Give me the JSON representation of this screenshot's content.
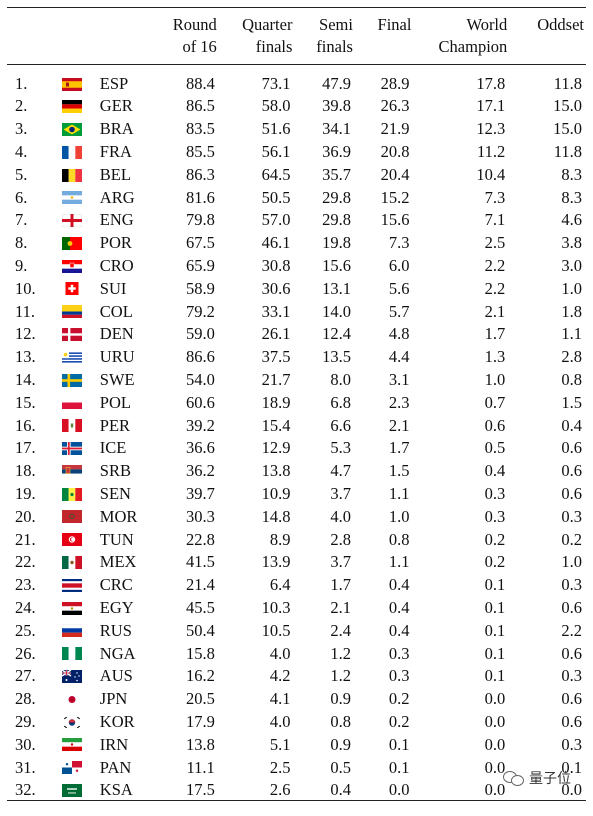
{
  "headers": {
    "r16": [
      "Round",
      "of 16"
    ],
    "qf": [
      "Quarter",
      "finals"
    ],
    "sf": [
      "Semi",
      "finals"
    ],
    "fin": [
      "Final"
    ],
    "wc": [
      "World",
      "Champion"
    ],
    "odd": [
      "Oddset"
    ]
  },
  "rows": [
    {
      "rank": "1.",
      "code": "ESP",
      "r16": "88.4",
      "qf": "73.1",
      "sf": "47.9",
      "fin": "28.9",
      "wc": "17.8",
      "odd": "11.8",
      "flag": "esp-flag-icon"
    },
    {
      "rank": "2.",
      "code": "GER",
      "r16": "86.5",
      "qf": "58.0",
      "sf": "39.8",
      "fin": "26.3",
      "wc": "17.1",
      "odd": "15.0",
      "flag": "ger-flag-icon"
    },
    {
      "rank": "3.",
      "code": "BRA",
      "r16": "83.5",
      "qf": "51.6",
      "sf": "34.1",
      "fin": "21.9",
      "wc": "12.3",
      "odd": "15.0",
      "flag": "bra-flag-icon"
    },
    {
      "rank": "4.",
      "code": "FRA",
      "r16": "85.5",
      "qf": "56.1",
      "sf": "36.9",
      "fin": "20.8",
      "wc": "11.2",
      "odd": "11.8",
      "flag": "fra-flag-icon"
    },
    {
      "rank": "5.",
      "code": "BEL",
      "r16": "86.3",
      "qf": "64.5",
      "sf": "35.7",
      "fin": "20.4",
      "wc": "10.4",
      "odd": "8.3",
      "flag": "bel-flag-icon"
    },
    {
      "rank": "6.",
      "code": "ARG",
      "r16": "81.6",
      "qf": "50.5",
      "sf": "29.8",
      "fin": "15.2",
      "wc": "7.3",
      "odd": "8.3",
      "flag": "arg-flag-icon"
    },
    {
      "rank": "7.",
      "code": "ENG",
      "r16": "79.8",
      "qf": "57.0",
      "sf": "29.8",
      "fin": "15.6",
      "wc": "7.1",
      "odd": "4.6",
      "flag": "eng-flag-icon"
    },
    {
      "rank": "8.",
      "code": "POR",
      "r16": "67.5",
      "qf": "46.1",
      "sf": "19.8",
      "fin": "7.3",
      "wc": "2.5",
      "odd": "3.8",
      "flag": "por-flag-icon"
    },
    {
      "rank": "9.",
      "code": "CRO",
      "r16": "65.9",
      "qf": "30.8",
      "sf": "15.6",
      "fin": "6.0",
      "wc": "2.2",
      "odd": "3.0",
      "flag": "cro-flag-icon"
    },
    {
      "rank": "10.",
      "code": "SUI",
      "r16": "58.9",
      "qf": "30.6",
      "sf": "13.1",
      "fin": "5.6",
      "wc": "2.2",
      "odd": "1.0",
      "flag": "sui-flag-icon"
    },
    {
      "rank": "11.",
      "code": "COL",
      "r16": "79.2",
      "qf": "33.1",
      "sf": "14.0",
      "fin": "5.7",
      "wc": "2.1",
      "odd": "1.8",
      "flag": "col-flag-icon"
    },
    {
      "rank": "12.",
      "code": "DEN",
      "r16": "59.0",
      "qf": "26.1",
      "sf": "12.4",
      "fin": "4.8",
      "wc": "1.7",
      "odd": "1.1",
      "flag": "den-flag-icon"
    },
    {
      "rank": "13.",
      "code": "URU",
      "r16": "86.6",
      "qf": "37.5",
      "sf": "13.5",
      "fin": "4.4",
      "wc": "1.3",
      "odd": "2.8",
      "flag": "uru-flag-icon"
    },
    {
      "rank": "14.",
      "code": "SWE",
      "r16": "54.0",
      "qf": "21.7",
      "sf": "8.0",
      "fin": "3.1",
      "wc": "1.0",
      "odd": "0.8",
      "flag": "swe-flag-icon"
    },
    {
      "rank": "15.",
      "code": "POL",
      "r16": "60.6",
      "qf": "18.9",
      "sf": "6.8",
      "fin": "2.3",
      "wc": "0.7",
      "odd": "1.5",
      "flag": "pol-flag-icon"
    },
    {
      "rank": "16.",
      "code": "PER",
      "r16": "39.2",
      "qf": "15.4",
      "sf": "6.6",
      "fin": "2.1",
      "wc": "0.6",
      "odd": "0.4",
      "flag": "per-flag-icon"
    },
    {
      "rank": "17.",
      "code": "ICE",
      "r16": "36.6",
      "qf": "12.9",
      "sf": "5.3",
      "fin": "1.7",
      "wc": "0.5",
      "odd": "0.6",
      "flag": "ice-flag-icon"
    },
    {
      "rank": "18.",
      "code": "SRB",
      "r16": "36.2",
      "qf": "13.8",
      "sf": "4.7",
      "fin": "1.5",
      "wc": "0.4",
      "odd": "0.6",
      "flag": "srb-flag-icon"
    },
    {
      "rank": "19.",
      "code": "SEN",
      "r16": "39.7",
      "qf": "10.9",
      "sf": "3.7",
      "fin": "1.1",
      "wc": "0.3",
      "odd": "0.6",
      "flag": "sen-flag-icon"
    },
    {
      "rank": "20.",
      "code": "MOR",
      "r16": "30.3",
      "qf": "14.8",
      "sf": "4.0",
      "fin": "1.0",
      "wc": "0.3",
      "odd": "0.3",
      "flag": "mor-flag-icon"
    },
    {
      "rank": "21.",
      "code": "TUN",
      "r16": "22.8",
      "qf": "8.9",
      "sf": "2.8",
      "fin": "0.8",
      "wc": "0.2",
      "odd": "0.2",
      "flag": "tun-flag-icon"
    },
    {
      "rank": "22.",
      "code": "MEX",
      "r16": "41.5",
      "qf": "13.9",
      "sf": "3.7",
      "fin": "1.1",
      "wc": "0.2",
      "odd": "1.0",
      "flag": "mex-flag-icon"
    },
    {
      "rank": "23.",
      "code": "CRC",
      "r16": "21.4",
      "qf": "6.4",
      "sf": "1.7",
      "fin": "0.4",
      "wc": "0.1",
      "odd": "0.3",
      "flag": "crc-flag-icon"
    },
    {
      "rank": "24.",
      "code": "EGY",
      "r16": "45.5",
      "qf": "10.3",
      "sf": "2.1",
      "fin": "0.4",
      "wc": "0.1",
      "odd": "0.6",
      "flag": "egy-flag-icon"
    },
    {
      "rank": "25.",
      "code": "RUS",
      "r16": "50.4",
      "qf": "10.5",
      "sf": "2.4",
      "fin": "0.4",
      "wc": "0.1",
      "odd": "2.2",
      "flag": "rus-flag-icon"
    },
    {
      "rank": "26.",
      "code": "NGA",
      "r16": "15.8",
      "qf": "4.0",
      "sf": "1.2",
      "fin": "0.3",
      "wc": "0.1",
      "odd": "0.6",
      "flag": "nga-flag-icon"
    },
    {
      "rank": "27.",
      "code": "AUS",
      "r16": "16.2",
      "qf": "4.2",
      "sf": "1.2",
      "fin": "0.3",
      "wc": "0.1",
      "odd": "0.3",
      "flag": "aus-flag-icon"
    },
    {
      "rank": "28.",
      "code": "JPN",
      "r16": "20.5",
      "qf": "4.1",
      "sf": "0.9",
      "fin": "0.2",
      "wc": "0.0",
      "odd": "0.6",
      "flag": "jpn-flag-icon"
    },
    {
      "rank": "29.",
      "code": "KOR",
      "r16": "17.9",
      "qf": "4.0",
      "sf": "0.8",
      "fin": "0.2",
      "wc": "0.0",
      "odd": "0.6",
      "flag": "kor-flag-icon"
    },
    {
      "rank": "30.",
      "code": "IRN",
      "r16": "13.8",
      "qf": "5.1",
      "sf": "0.9",
      "fin": "0.1",
      "wc": "0.0",
      "odd": "0.3",
      "flag": "irn-flag-icon"
    },
    {
      "rank": "31.",
      "code": "PAN",
      "r16": "11.1",
      "qf": "2.5",
      "sf": "0.5",
      "fin": "0.1",
      "wc": "0.0",
      "odd": "0.1",
      "flag": "pan-flag-icon"
    },
    {
      "rank": "32.",
      "code": "KSA",
      "r16": "17.5",
      "qf": "2.6",
      "sf": "0.4",
      "fin": "0.0",
      "wc": "0.0",
      "odd": "0.0",
      "flag": "ksa-flag-icon"
    }
  ],
  "watermark": "量子位"
}
